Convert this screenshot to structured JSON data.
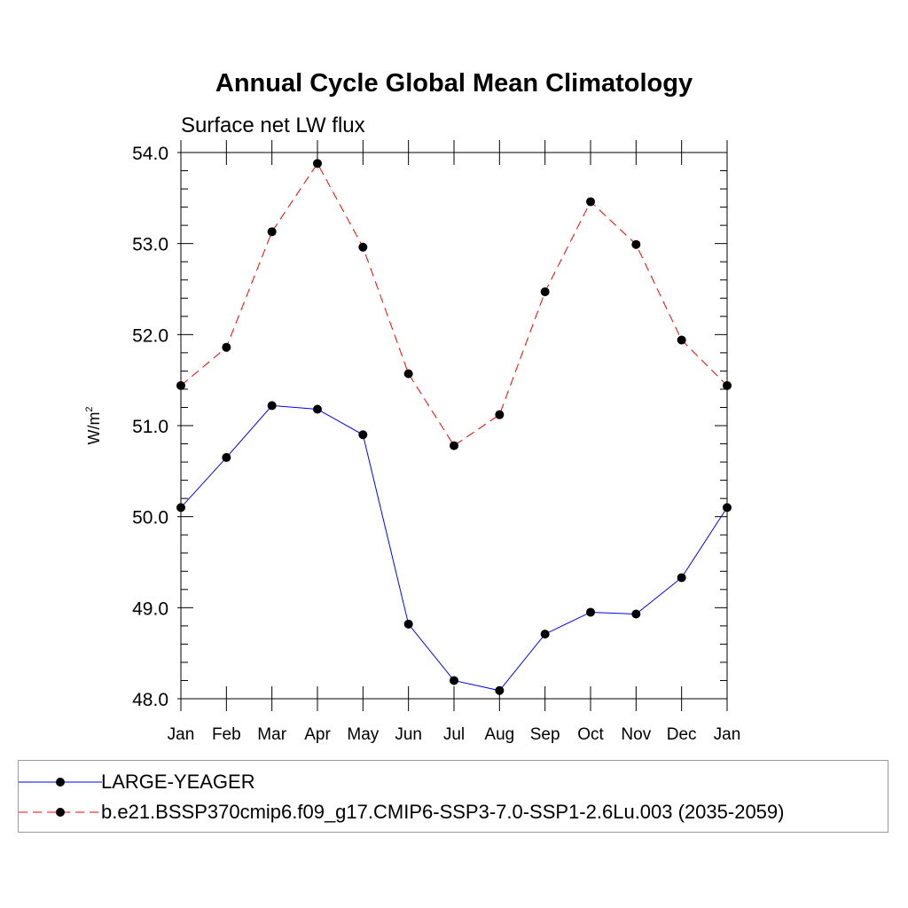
{
  "chart_data": {
    "type": "line",
    "title": "Annual Cycle Global Mean Climatology",
    "subtitle": "Surface net LW flux",
    "ylabel": "W/m",
    "ylabel_superscript": "2",
    "ylim": [
      48.0,
      54.0
    ],
    "yticks": [
      "48.0",
      "49.0",
      "50.0",
      "51.0",
      "52.0",
      "53.0",
      "54.0"
    ],
    "categories": [
      "Jan",
      "Feb",
      "Mar",
      "Apr",
      "May",
      "Jun",
      "Jul",
      "Aug",
      "Sep",
      "Oct",
      "Nov",
      "Dec",
      "Jan"
    ],
    "grid": false,
    "legend_position": "bottom",
    "series": [
      {
        "name": "LARGE-YEAGER",
        "color": "#0000ff",
        "dash": "solid",
        "values": [
          50.1,
          50.65,
          51.22,
          51.18,
          50.9,
          48.82,
          48.2,
          48.09,
          48.71,
          48.95,
          48.93,
          49.33,
          50.1
        ]
      },
      {
        "name": "b.e21.BSSP370cmip6.f09_g17.CMIP6-SSP3-7.0-SSP1-2.6Lu.003 (2035-2059)",
        "color": "#ff0000",
        "dash": "dashed",
        "values": [
          51.44,
          51.86,
          53.13,
          53.88,
          52.96,
          51.57,
          50.78,
          51.12,
          52.47,
          53.46,
          52.99,
          51.94,
          51.44
        ]
      }
    ]
  }
}
